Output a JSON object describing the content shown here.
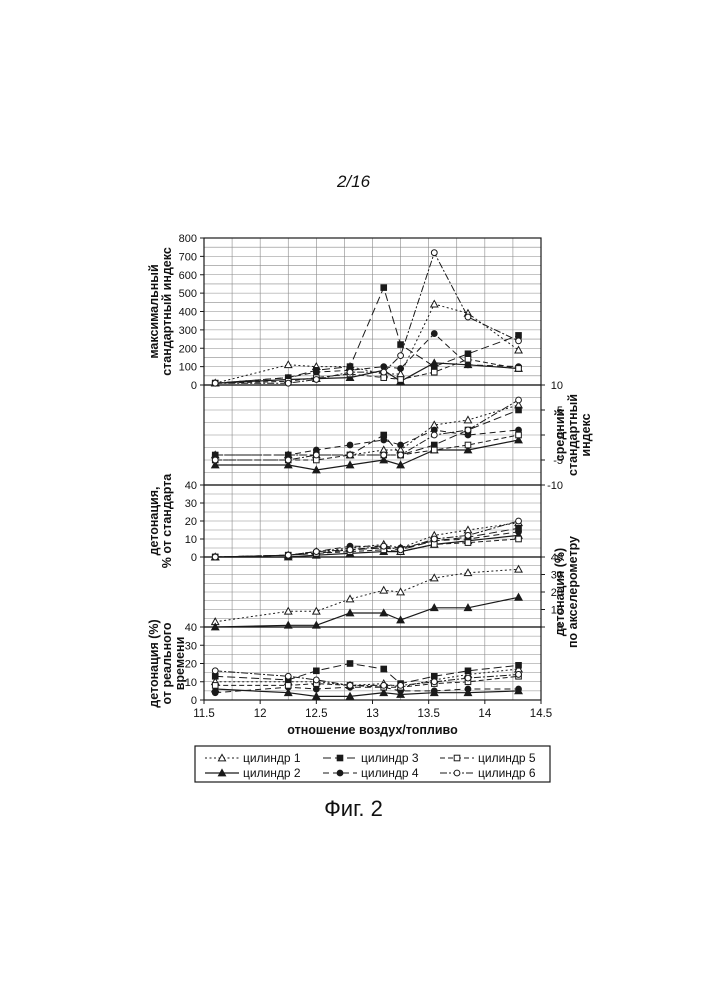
{
  "page_number": "2/16",
  "figure_caption": "Фиг. 2",
  "colors": {
    "ink": "#1a1a1a",
    "grid": "#8a8a8a",
    "background": "#ffffff"
  },
  "chart_data": [
    {
      "type": "line",
      "panel": "max_standard_index",
      "ylabel": "максимальный стандартный индекс",
      "ylabel_lines": [
        "максимальный",
        "стандартный индекс"
      ],
      "y_axis_side": "left",
      "ylim": [
        0,
        800
      ],
      "yticks": [
        0,
        100,
        200,
        300,
        400,
        500,
        600,
        700,
        800
      ],
      "grid": true,
      "x": [
        11.6,
        12.25,
        12.5,
        12.8,
        13.1,
        13.25,
        13.55,
        13.85,
        14.3
      ],
      "series": [
        {
          "name": "цилиндр 1",
          "values": [
            10,
            110,
            100,
            100,
            60,
            60,
            440,
            390,
            190
          ]
        },
        {
          "name": "цилиндр 2",
          "values": [
            10,
            30,
            35,
            40,
            80,
            20,
            120,
            110,
            90
          ]
        },
        {
          "name": "цилиндр 3",
          "values": [
            10,
            40,
            80,
            100,
            530,
            220,
            100,
            170,
            270
          ]
        },
        {
          "name": "цилиндр 4",
          "values": [
            10,
            40,
            70,
            80,
            100,
            90,
            280,
            110,
            100
          ]
        },
        {
          "name": "цилиндр 5",
          "values": [
            10,
            20,
            40,
            60,
            40,
            30,
            70,
            140,
            90
          ]
        },
        {
          "name": "цилиндр 6",
          "values": [
            10,
            10,
            30,
            70,
            70,
            160,
            720,
            370,
            240
          ]
        }
      ]
    },
    {
      "type": "line",
      "panel": "mean_standard_index",
      "ylabel": "средний стандартный индекс",
      "ylabel_lines": [
        "средний",
        "стандартный",
        "индекс"
      ],
      "y_axis_side": "right",
      "ylim": [
        -10,
        10
      ],
      "yticks": [
        10,
        5,
        0,
        -5,
        -10
      ],
      "grid": true,
      "x": [
        11.6,
        12.25,
        12.5,
        12.8,
        13.1,
        13.25,
        13.55,
        13.85,
        14.3
      ],
      "series": [
        {
          "name": "цилиндр 1",
          "values": [
            -4,
            -4,
            -4,
            -4,
            -3,
            -3,
            2,
            3,
            6
          ]
        },
        {
          "name": "цилиндр 2",
          "values": [
            -6,
            -6,
            -7,
            -6,
            -5,
            -6,
            -3,
            -3,
            -1
          ]
        },
        {
          "name": "цилиндр 3",
          "values": [
            -4,
            -4,
            -4,
            -4,
            0,
            -4,
            -2,
            1,
            5
          ]
        },
        {
          "name": "цилиндр 4",
          "values": [
            -4,
            -4,
            -3,
            -2,
            -1,
            -2,
            1,
            0,
            1
          ]
        },
        {
          "name": "цилиндр 5",
          "values": [
            -5,
            -5,
            -5,
            -4,
            -4,
            -4,
            -3,
            -2,
            0
          ]
        },
        {
          "name": "цилиндр 6",
          "values": [
            -5,
            -5,
            -4,
            -4,
            -4,
            -4,
            0,
            1,
            7
          ]
        }
      ]
    },
    {
      "type": "line",
      "panel": "knock_percent_of_standard",
      "ylabel": "детонация, % от стандарта",
      "ylabel_lines": [
        "детонация,",
        "% от стандарта"
      ],
      "y_axis_side": "left",
      "ylim": [
        0,
        40
      ],
      "yticks": [
        0,
        10,
        20,
        30,
        40
      ],
      "grid": true,
      "x": [
        11.6,
        12.25,
        12.5,
        12.8,
        13.1,
        13.25,
        13.55,
        13.85,
        14.3
      ],
      "series": [
        {
          "name": "цилиндр 1",
          "values": [
            0,
            1,
            3,
            5,
            7,
            5,
            12,
            15,
            19
          ]
        },
        {
          "name": "цилиндр 2",
          "values": [
            0,
            0,
            1,
            2,
            3,
            3,
            7,
            9,
            12
          ]
        },
        {
          "name": "цилиндр 3",
          "values": [
            0,
            1,
            2,
            4,
            5,
            4,
            9,
            11,
            16
          ]
        },
        {
          "name": "цилиндр 4",
          "values": [
            0,
            1,
            3,
            6,
            6,
            5,
            9,
            10,
            14
          ]
        },
        {
          "name": "цилиндр 5",
          "values": [
            0,
            1,
            2,
            3,
            4,
            3,
            7,
            8,
            10
          ]
        },
        {
          "name": "цилиндр 6",
          "values": [
            0,
            1,
            3,
            4,
            6,
            4,
            10,
            12,
            20
          ]
        }
      ]
    },
    {
      "type": "line",
      "panel": "knock_accelerometer",
      "ylabel": "детонация (%) по акселерометру",
      "ylabel_lines": [
        "детонация (%)",
        "по акселерометру"
      ],
      "y_axis_side": "right",
      "ylim": [
        0,
        40
      ],
      "yticks": [
        40,
        30,
        20,
        10,
        0
      ],
      "grid": true,
      "x": [
        11.6,
        12.25,
        12.5,
        12.8,
        13.1,
        13.25,
        13.55,
        13.85,
        14.3
      ],
      "series": [
        {
          "name": "цилиндр 1",
          "values": [
            3,
            9,
            9,
            16,
            21,
            20,
            28,
            31,
            33
          ]
        },
        {
          "name": "цилиндр 2",
          "values": [
            0,
            1,
            1,
            8,
            8,
            4,
            11,
            11,
            17
          ]
        }
      ]
    },
    {
      "type": "line",
      "panel": "knock_realtime",
      "ylabel": "детонация (%) от реального времени",
      "ylabel_lines": [
        "детонация (%)",
        "от реального",
        "времени"
      ],
      "y_axis_side": "left",
      "xlabel": "отношение воздух/топливо",
      "ylim": [
        0,
        40
      ],
      "yticks": [
        0,
        10,
        20,
        30,
        40
      ],
      "xlim": [
        11.5,
        14.5
      ],
      "xticks": [
        "11.5",
        "12",
        "12.5",
        "13",
        "13.5",
        "14",
        "14.5"
      ],
      "grid": true,
      "x": [
        11.6,
        12.25,
        12.5,
        12.8,
        13.1,
        13.25,
        13.55,
        13.85,
        14.3
      ],
      "series": [
        {
          "name": "цилиндр 1",
          "values": [
            10,
            10,
            10,
            8,
            9,
            7,
            11,
            14,
            17
          ]
        },
        {
          "name": "цилиндр 2",
          "values": [
            6,
            4,
            2,
            2,
            4,
            3,
            4,
            4,
            5
          ]
        },
        {
          "name": "цилиндр 3",
          "values": [
            13,
            11,
            16,
            20,
            17,
            9,
            13,
            16,
            19
          ]
        },
        {
          "name": "цилиндр 4",
          "values": [
            4,
            7,
            6,
            7,
            7,
            5,
            5,
            6,
            6
          ]
        },
        {
          "name": "цилиндр 5",
          "values": [
            8,
            8,
            9,
            8,
            7,
            7,
            9,
            10,
            13
          ]
        },
        {
          "name": "цилиндр 6",
          "values": [
            16,
            13,
            11,
            8,
            8,
            8,
            10,
            12,
            14
          ]
        }
      ]
    }
  ],
  "legend": {
    "placement": "bottom",
    "entries": [
      {
        "label": "цилиндр 1",
        "marker": "open-triangle",
        "line": "dotted"
      },
      {
        "label": "цилиндр 3",
        "marker": "filled-square",
        "line": "long-dash"
      },
      {
        "label": "цилиндр 5",
        "marker": "open-square",
        "line": "dash"
      },
      {
        "label": "цилиндр 2",
        "marker": "filled-triangle",
        "line": "solid"
      },
      {
        "label": "цилиндр 4",
        "marker": "filled-circle",
        "line": "dash"
      },
      {
        "label": "цилиндр 6",
        "marker": "open-circle",
        "line": "dash-dot"
      }
    ]
  }
}
